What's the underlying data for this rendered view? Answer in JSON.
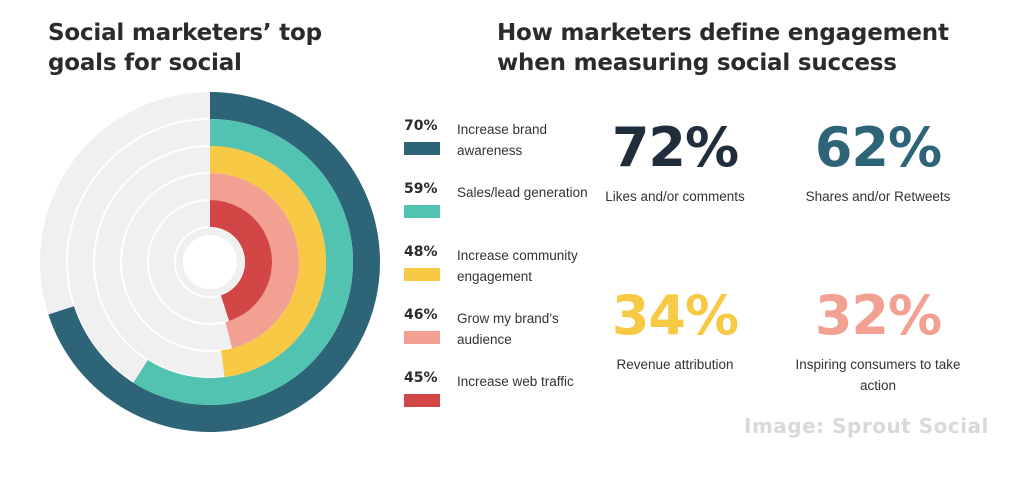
{
  "left_title": "Social marketers’ top goals for social",
  "right_title": "How marketers define engagement when measuring social success",
  "chart_data": {
    "type": "radial-bar",
    "title": "Social marketers’ top goals for social",
    "max": 100,
    "series": [
      {
        "name": "Increase brand awareness",
        "value": 70,
        "label": "70%",
        "color": "#2e6478"
      },
      {
        "name": "Sales/lead generation",
        "value": 59,
        "label": "59%",
        "color": "#52c3b0"
      },
      {
        "name": "Increase community engagement",
        "value": 48,
        "label": "48%",
        "color": "#f8c944"
      },
      {
        "name": "Grow my brand’s audience",
        "value": 46,
        "label": "46%",
        "color": "#f2a092"
      },
      {
        "name": "Increase web traffic",
        "value": 45,
        "label": "45%",
        "color": "#d24745"
      }
    ],
    "track_color": "#f0f0f0"
  },
  "legend": [
    {
      "pct": "70%",
      "label": "Increase brand awareness",
      "color": "#2e6478"
    },
    {
      "pct": "59%",
      "label": "Sales/lead generation",
      "color": "#52c3b0"
    },
    {
      "pct": "48%",
      "label": "Increase community engagement",
      "color": "#f8c944"
    },
    {
      "pct": "46%",
      "label": "Grow my brand’s audience",
      "color": "#f2a092"
    },
    {
      "pct": "45%",
      "label": "Increase web traffic",
      "color": "#d24745"
    }
  ],
  "stats": [
    {
      "value": "72%",
      "label": "Likes and/or comments",
      "color": "#1f2d3d"
    },
    {
      "value": "62%",
      "label": "Shares and/or Retweets",
      "color": "#2e6478"
    },
    {
      "value": "34%",
      "label": "Revenue attribution",
      "color": "#f8c944"
    },
    {
      "value": "32%",
      "label": "Inspiring consumers to take action",
      "color": "#f2a092"
    }
  ],
  "credit": "Image: Sprout Social"
}
